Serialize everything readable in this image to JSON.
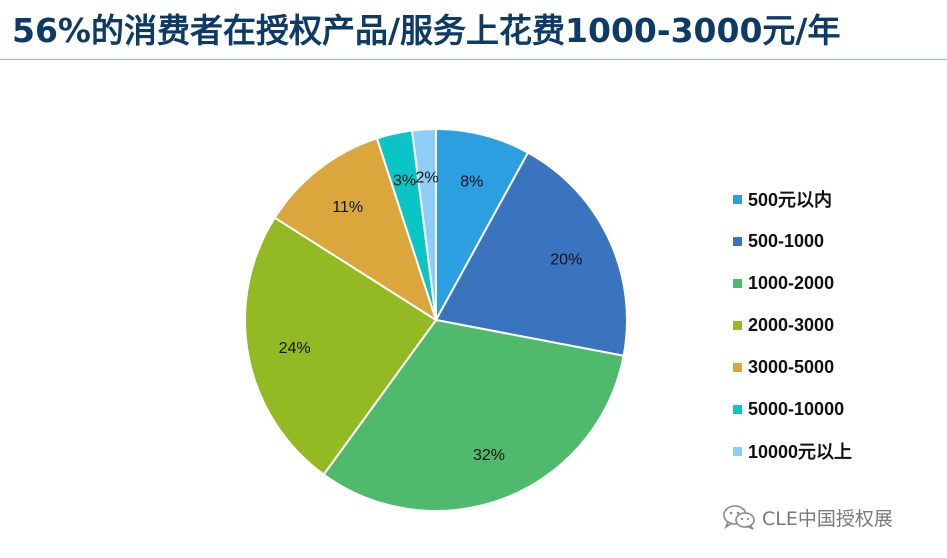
{
  "header": {
    "title": "56%的消费者在授权产品/服务上花费1000-3000元/年"
  },
  "chart_data": {
    "type": "pie",
    "title": "",
    "categories": [
      "500元以内",
      "500-1000",
      "1000-2000",
      "2000-3000",
      "3000-5000",
      "5000-10000",
      "10000元以上"
    ],
    "values": [
      8,
      20,
      32,
      24,
      11,
      3,
      2
    ],
    "labels": [
      "8%",
      "20%",
      "32%",
      "24%",
      "11%",
      "3%",
      "2%"
    ],
    "colors": [
      "#2b9fe0",
      "#3b74be",
      "#4fba6c",
      "#93b923",
      "#dba73c",
      "#0ac5c5",
      "#8ecdf7"
    ],
    "start_angle": "12 o'clock",
    "direction": "clockwise",
    "legend_position": "right"
  },
  "watermark": {
    "text": "CLE中国授权展",
    "icon": "wechat-icon"
  }
}
